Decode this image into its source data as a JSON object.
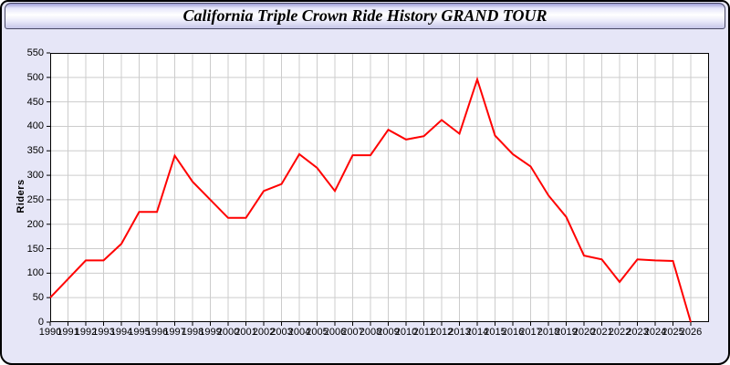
{
  "window": {
    "title": "California Triple Crown Ride History GRAND TOUR"
  },
  "colors": {
    "line": "#ff0000",
    "grid": "#cccccc",
    "axis": "#000000",
    "plot_background": "#ffffff",
    "window_background": "#e6e6f7",
    "title_text": "#000000"
  },
  "chart_data": {
    "type": "line",
    "title": "California Triple Crown Ride History GRAND TOUR",
    "xlabel": "",
    "ylabel": "Riders",
    "legend_position": "none",
    "grid": true,
    "ylim": [
      0,
      550
    ],
    "yticks": [
      0,
      50,
      100,
      150,
      200,
      250,
      300,
      350,
      400,
      450,
      500,
      550
    ],
    "x": [
      1990,
      1991,
      1992,
      1993,
      1994,
      1995,
      1996,
      1997,
      1998,
      1999,
      2000,
      2001,
      2002,
      2003,
      2004,
      2005,
      2006,
      2007,
      2008,
      2009,
      2010,
      2011,
      2012,
      2013,
      2014,
      2015,
      2016,
      2017,
      2018,
      2019,
      2020,
      2021,
      2022,
      2023,
      2024,
      2025,
      2026
    ],
    "series": [
      {
        "name": "Riders",
        "values": [
          50,
          88,
          126,
          126,
          160,
          225,
          225,
          340,
          287,
          250,
          213,
          213,
          268,
          282,
          343,
          315,
          268,
          341,
          341,
          393,
          373,
          380,
          413,
          385,
          496,
          381,
          343,
          318,
          259,
          215,
          136,
          128,
          82,
          128,
          126,
          125,
          0
        ]
      }
    ]
  }
}
